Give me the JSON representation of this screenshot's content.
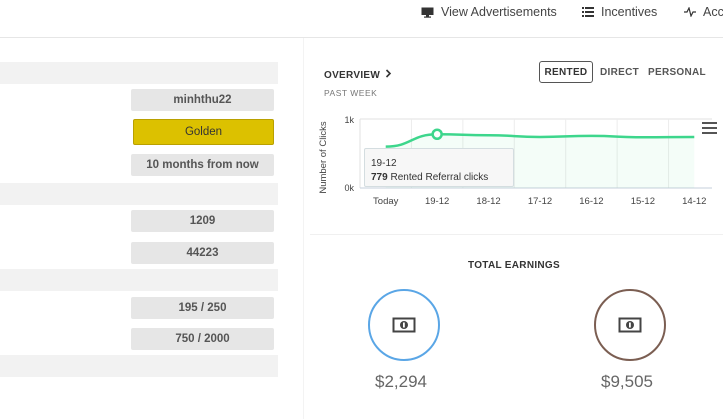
{
  "nav": {
    "view_ads": "View Advertisements",
    "incentives": "Incentives",
    "account": "Acc"
  },
  "profile": {
    "username": "minhthu22",
    "membership": "Golden",
    "expires": "10 months from now",
    "stat1": "1209",
    "stat2": "44223",
    "stat3": "195 / 250",
    "stat4": "750 / 2000"
  },
  "overview": {
    "title": "OVERVIEW",
    "period": "PAST WEEK",
    "tabs": [
      "RENTED",
      "DIRECT",
      "PERSONAL"
    ],
    "active_tab": "RENTED"
  },
  "chart_data": {
    "type": "line",
    "categories": [
      "Today",
      "19-12",
      "18-12",
      "17-12",
      "16-12",
      "15-12",
      "14-12"
    ],
    "series": [
      {
        "values": [
          600,
          779,
          765,
          740,
          755,
          735,
          740
        ]
      }
    ],
    "ylabel": "Number of Clicks",
    "y_ticks": [
      "0k",
      "1k"
    ],
    "ylim": [
      0,
      1000
    ],
    "line_color": "#3dd68c",
    "tooltip": {
      "date": "19-12",
      "value": "779",
      "label": "Rented Referral clicks"
    }
  },
  "earnings": {
    "title": "TOTAL EARNINGS",
    "rented": {
      "amount": "$2,294",
      "color": "#5aa6e6"
    },
    "direct": {
      "amount": "$9,505",
      "color": "#7b5e52"
    }
  }
}
